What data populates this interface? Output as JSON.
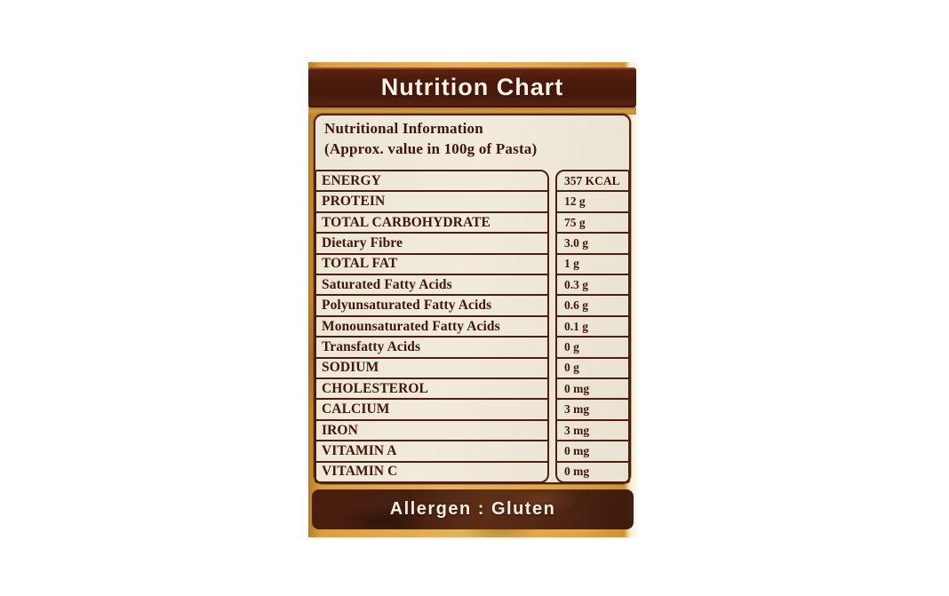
{
  "label": {
    "title": "Nutrition Chart",
    "info_title": "Nutritional Information",
    "info_subtitle": "(Approx. value in 100g of Pasta)",
    "rows": [
      {
        "label": "ENERGY",
        "value": "357 KCAL"
      },
      {
        "label": "PROTEIN",
        "value": "12 g"
      },
      {
        "label": "TOTAL CARBOHYDRATE",
        "value": "75 g"
      },
      {
        "label": "Dietary Fibre",
        "value": "3.0 g"
      },
      {
        "label": "TOTAL FAT",
        "value": "1 g"
      },
      {
        "label": "Saturated Fatty Acids",
        "value": "0.3 g"
      },
      {
        "label": "Polyunsaturated Fatty Acids",
        "value": "0.6 g"
      },
      {
        "label": "Monounsaturated Fatty Acids",
        "value": "0.1 g"
      },
      {
        "label": "Transfatty Acids",
        "value": "0 g"
      },
      {
        "label": "SODIUM",
        "value": "0 g"
      },
      {
        "label": "CHOLESTEROL",
        "value": "0 mg"
      },
      {
        "label": "CALCIUM",
        "value": "3 mg"
      },
      {
        "label": "IRON",
        "value": "3 mg"
      },
      {
        "label": "VITAMIN A",
        "value": "0 mg"
      },
      {
        "label": "VITAMIN C",
        "value": "0 mg"
      }
    ],
    "allergen": "Allergen : Gluten",
    "colors": {
      "package_amber": "#dd9f3d",
      "banner_brown": "#4a1a0c",
      "gold_strip": "#c88c33",
      "panel_cream": "#ece6d7",
      "border_maroon": "#4f1e0e",
      "text_maroon": "#42150a",
      "banner_text": "#f8f2e6"
    }
  }
}
